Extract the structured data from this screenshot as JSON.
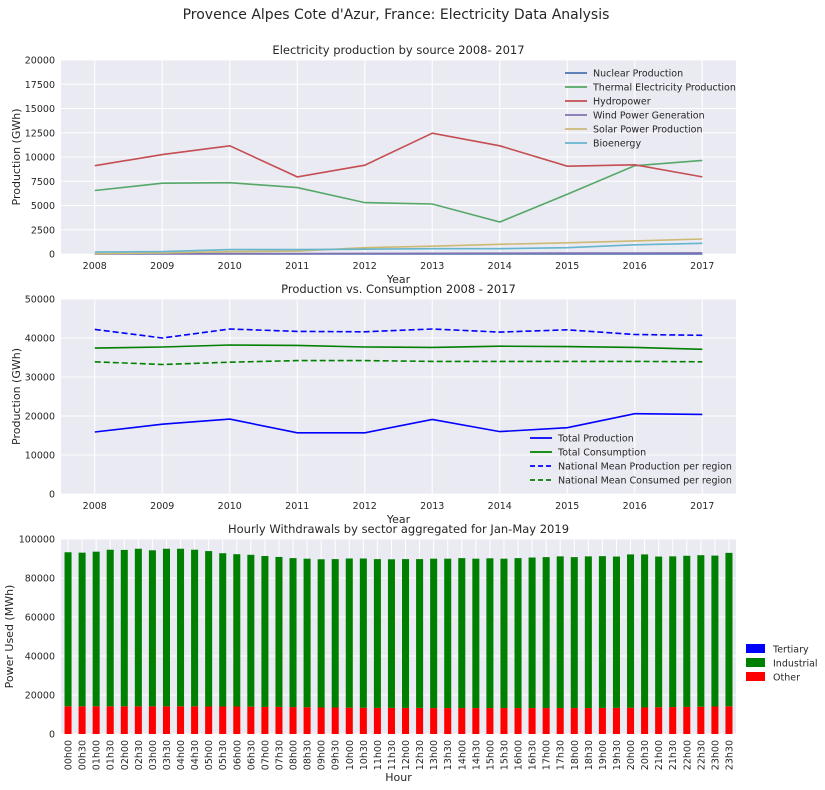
{
  "figure": {
    "title": "Provence Alpes Cote d'Azur, France: Electricity Data Analysis",
    "background": "#ffffff",
    "axes_background": "#EAEAF2",
    "grid_color": "#ffffff"
  },
  "chart_data": [
    {
      "type": "line",
      "title": "Electricity production by source 2008- 2017",
      "xlabel": "Year",
      "ylabel": "Production (GWh)",
      "x": [
        2008,
        2009,
        2010,
        2011,
        2012,
        2013,
        2014,
        2015,
        2016,
        2017
      ],
      "xlim": [
        2007.5,
        2017.5
      ],
      "ylim": [
        0,
        20000
      ],
      "yticks": [
        0,
        2500,
        5000,
        7500,
        10000,
        12500,
        15000,
        17500,
        20000
      ],
      "grid": true,
      "legend_position": "top-right",
      "series": [
        {
          "name": "Nuclear Production",
          "color": "#4C72B0",
          "dash": "solid",
          "values": [
            0,
            0,
            0,
            0,
            0,
            0,
            0,
            0,
            0,
            0
          ]
        },
        {
          "name": "Thermal Electricity Production",
          "color": "#55A868",
          "dash": "solid",
          "values": [
            6550,
            7300,
            7350,
            6850,
            5300,
            5150,
            3300,
            6150,
            9100,
            9650
          ]
        },
        {
          "name": "Hydropower",
          "color": "#C44E52",
          "dash": "solid",
          "values": [
            9100,
            10250,
            11150,
            7950,
            9150,
            12450,
            11150,
            9050,
            9200,
            7950
          ]
        },
        {
          "name": "Wind Power Generation",
          "color": "#8172B2",
          "dash": "solid",
          "values": [
            20,
            30,
            40,
            50,
            60,
            70,
            80,
            90,
            100,
            110
          ]
        },
        {
          "name": "Solar Power Production",
          "color": "#CCB974",
          "dash": "solid",
          "values": [
            30,
            100,
            250,
            300,
            650,
            800,
            1000,
            1150,
            1350,
            1550
          ]
        },
        {
          "name": "Bioenergy",
          "color": "#64B5CD",
          "dash": "solid",
          "values": [
            200,
            250,
            450,
            450,
            500,
            550,
            550,
            650,
            950,
            1100
          ]
        }
      ]
    },
    {
      "type": "line",
      "title": "Production vs. Consumption 2008 - 2017",
      "xlabel": "Year",
      "ylabel": "Production (GWh)",
      "x": [
        2008,
        2009,
        2010,
        2011,
        2012,
        2013,
        2014,
        2015,
        2016,
        2017
      ],
      "xlim": [
        2007.5,
        2017.5
      ],
      "ylim": [
        0,
        50000
      ],
      "yticks": [
        0,
        10000,
        20000,
        30000,
        40000,
        50000
      ],
      "grid": true,
      "legend_position": "bottom-right",
      "series": [
        {
          "name": "Total Production",
          "color": "#0000ff",
          "dash": "solid",
          "values": [
            15900,
            17900,
            19200,
            15700,
            15700,
            19100,
            16000,
            17000,
            20600,
            20400
          ]
        },
        {
          "name": "Total Consumption",
          "color": "#008000",
          "dash": "solid",
          "values": [
            37400,
            37700,
            38200,
            38100,
            37700,
            37600,
            37900,
            37800,
            37600,
            37100
          ]
        },
        {
          "name": "National Mean Production per region",
          "color": "#0000ff",
          "dash": "dashed",
          "values": [
            42200,
            40000,
            42300,
            41700,
            41600,
            42300,
            41500,
            42100,
            40900,
            40700
          ]
        },
        {
          "name": " National Mean Consumed per region",
          "color": "#008000",
          "dash": "dashed",
          "values": [
            33900,
            33200,
            33800,
            34200,
            34200,
            34000,
            34000,
            34000,
            34000,
            33900
          ]
        }
      ]
    },
    {
      "type": "bar",
      "stacked": true,
      "title": "Hourly Withdrawals by sector aggregated for Jan-May 2019",
      "xlabel": "Hour",
      "ylabel": "Power Used (MWh)",
      "ylim": [
        0,
        100000
      ],
      "yticks": [
        0,
        20000,
        40000,
        60000,
        80000,
        100000
      ],
      "grid": true,
      "legend_position": "right",
      "categories": [
        "00h00",
        "00h30",
        "01h00",
        "01h30",
        "02h00",
        "02h30",
        "03h00",
        "03h30",
        "04h00",
        "04h30",
        "05h00",
        "05h30",
        "06h00",
        "06h30",
        "07h00",
        "07h30",
        "08h00",
        "08h30",
        "09h00",
        "09h30",
        "10h00",
        "10h30",
        "11h00",
        "11h30",
        "12h00",
        "12h30",
        "13h00",
        "13h30",
        "14h00",
        "14h30",
        "15h00",
        "15h30",
        "16h00",
        "16h30",
        "17h00",
        "17h30",
        "18h00",
        "18h30",
        "19h00",
        "19h30",
        "20h00",
        "20h30",
        "21h00",
        "21h30",
        "22h00",
        "22h30",
        "23h00",
        "23h30"
      ],
      "series": [
        {
          "name": "Tertiary",
          "color": "#0000ff",
          "values": [
            0,
            0,
            0,
            0,
            0,
            0,
            0,
            0,
            0,
            0,
            0,
            0,
            0,
            0,
            0,
            0,
            0,
            0,
            0,
            0,
            0,
            0,
            0,
            0,
            0,
            0,
            0,
            0,
            0,
            0,
            0,
            0,
            0,
            0,
            0,
            0,
            0,
            0,
            0,
            0,
            0,
            0,
            0,
            0,
            0,
            0,
            0,
            0
          ]
        },
        {
          "name": "Industrial",
          "color": "#008000",
          "values": [
            79000,
            78800,
            79300,
            80300,
            80200,
            80800,
            80000,
            80800,
            80800,
            80300,
            79700,
            78600,
            78100,
            77900,
            77400,
            76900,
            76400,
            76200,
            76000,
            76100,
            76500,
            76500,
            76300,
            76200,
            76300,
            76300,
            76600,
            76600,
            76900,
            76600,
            76800,
            76600,
            76900,
            77200,
            77400,
            77800,
            77400,
            77800,
            77800,
            77600,
            78600,
            78500,
            77300,
            77300,
            77500,
            77700,
            77400,
            78700
          ]
        },
        {
          "name": "Other",
          "color": "#ff0000",
          "values": [
            14200,
            14200,
            14200,
            14200,
            14200,
            14200,
            14200,
            14200,
            14200,
            14200,
            14100,
            14100,
            14100,
            14000,
            13900,
            13900,
            13800,
            13700,
            13600,
            13600,
            13500,
            13500,
            13400,
            13400,
            13400,
            13400,
            13300,
            13300,
            13300,
            13300,
            13300,
            13300,
            13300,
            13300,
            13300,
            13300,
            13300,
            13300,
            13400,
            13400,
            13500,
            13600,
            13700,
            13800,
            13900,
            14000,
            14100,
            14200
          ]
        }
      ]
    }
  ]
}
